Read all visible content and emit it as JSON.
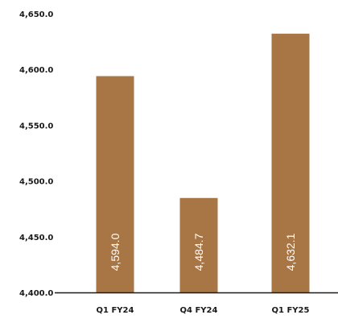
{
  "chart_data": {
    "type": "bar",
    "categories": [
      "Q1 FY24",
      "Q4 FY24",
      "Q1 FY25"
    ],
    "values": [
      4594.0,
      4484.7,
      4632.1
    ],
    "value_labels": [
      "4,594.0",
      "4,484.7",
      "4,632.1"
    ],
    "y_ticks": [
      4400,
      4450,
      4500,
      4550,
      4600,
      4650
    ],
    "y_tick_labels": [
      "4,400.0",
      "4,450.0",
      "4,500.0",
      "4,550.0",
      "4,600.0",
      "4,650.0"
    ],
    "ylim": [
      4400,
      4650
    ],
    "title": "",
    "xlabel": "",
    "ylabel": "",
    "grid": false,
    "legend": "none",
    "bar_color": "#a87545",
    "axis_color": "#1a1a1a"
  }
}
